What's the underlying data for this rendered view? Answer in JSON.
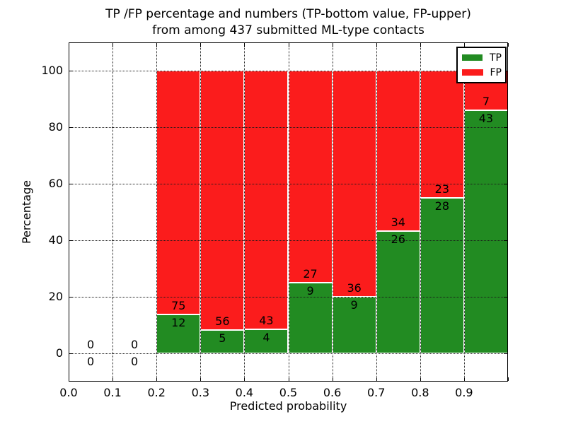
{
  "figure": {
    "title_line1": "TP /FP percentage and numbers (TP-bottom value, FP-upper)",
    "title_line2": "from among 437 submitted ML-type contacts"
  },
  "chart_data": {
    "type": "bar",
    "stacked": true,
    "title": "TP /FP percentage and numbers (TP-bottom value, FP-upper) from among 437 submitted ML-type contacts",
    "xlabel": "Predicted probability",
    "ylabel": "Percentage",
    "xlim": [
      0.0,
      1.0
    ],
    "ylim": [
      -10,
      110
    ],
    "x_tick_marks": [
      0.0,
      0.1,
      0.2,
      0.3,
      0.4,
      0.5,
      0.6,
      0.7,
      0.8,
      0.9,
      1.0
    ],
    "x_tick_labels": [
      "0.0",
      "0.1",
      "0.2",
      "0.3",
      "0.4",
      "0.5",
      "0.6",
      "0.7",
      "0.8",
      "0.9"
    ],
    "y_ticks": [
      0,
      20,
      40,
      60,
      80,
      100
    ],
    "grid": {
      "style": "dotted",
      "color": "#000000",
      "drawn_above_bars": true
    },
    "total_contacts": 437,
    "series": [
      {
        "name": "TP",
        "color": "#228b22"
      },
      {
        "name": "FP",
        "color": "#fb1c1c"
      }
    ],
    "bins": [
      {
        "range": [
          0.0,
          0.1
        ],
        "tp": 0,
        "fp": 0,
        "tp_pct": 0
      },
      {
        "range": [
          0.1,
          0.2
        ],
        "tp": 0,
        "fp": 0,
        "tp_pct": 0
      },
      {
        "range": [
          0.2,
          0.3
        ],
        "tp": 12,
        "fp": 75,
        "tp_pct": 13.8
      },
      {
        "range": [
          0.3,
          0.4
        ],
        "tp": 5,
        "fp": 56,
        "tp_pct": 8.2
      },
      {
        "range": [
          0.4,
          0.5
        ],
        "tp": 4,
        "fp": 43,
        "tp_pct": 8.5
      },
      {
        "range": [
          0.5,
          0.6
        ],
        "tp": 9,
        "fp": 27,
        "tp_pct": 25.0
      },
      {
        "range": [
          0.6,
          0.7
        ],
        "tp": 9,
        "fp": 36,
        "tp_pct": 20.0
      },
      {
        "range": [
          0.7,
          0.8
        ],
        "tp": 26,
        "fp": 34,
        "tp_pct": 43.3
      },
      {
        "range": [
          0.8,
          0.9
        ],
        "tp": 28,
        "fp": 23,
        "tp_pct": 54.9
      },
      {
        "range": [
          0.9,
          1.0
        ],
        "tp": 43,
        "fp": 7,
        "tp_pct": 86.0
      }
    ],
    "legend": {
      "position": "upper right",
      "entries": [
        {
          "label": "TP",
          "color": "#228b22"
        },
        {
          "label": "FP",
          "color": "#fb1c1c"
        }
      ]
    }
  }
}
